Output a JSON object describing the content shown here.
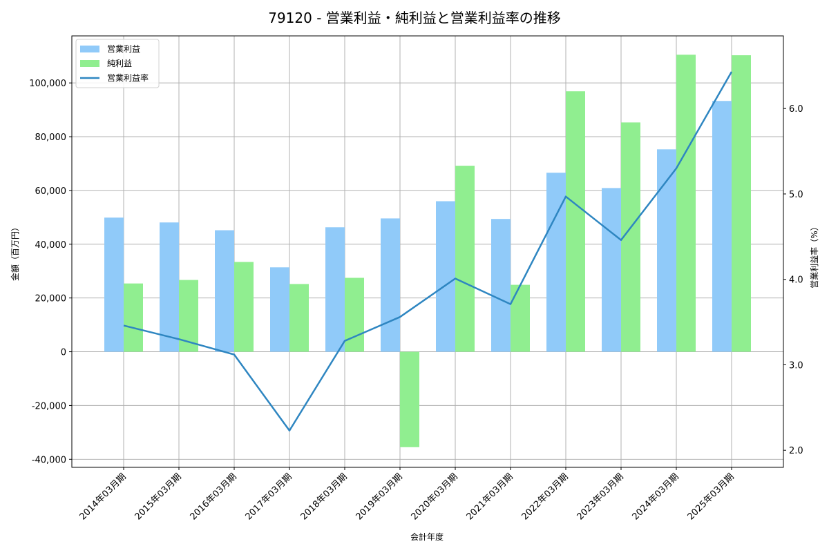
{
  "chart_data": {
    "type": "bar",
    "title": "79120 - 営業利益・純利益と営業利益率の推移",
    "xlabel": "会計年度",
    "ylabel": "金額（百万円）",
    "y2label": "営業利益率（%）",
    "categories": [
      "2014年03月期",
      "2015年03月期",
      "2016年03月期",
      "2017年03月期",
      "2018年03月期",
      "2019年03月期",
      "2020年03月期",
      "2021年03月期",
      "2022年03月期",
      "2023年03月期",
      "2024年03月期",
      "2025年03月期"
    ],
    "series": [
      {
        "name": "営業利益",
        "type": "bar",
        "axis": "left",
        "color": "#90CAF9",
        "values": [
          49900,
          48100,
          45200,
          31400,
          46300,
          49600,
          56000,
          49400,
          66600,
          60900,
          75300,
          93300
        ]
      },
      {
        "name": "純利益",
        "type": "bar",
        "axis": "left",
        "color": "#90EE90",
        "values": [
          25400,
          26700,
          33400,
          25200,
          27500,
          -35500,
          69200,
          24900,
          96900,
          85300,
          110500,
          110300
        ]
      },
      {
        "name": "営業利益率",
        "type": "line",
        "axis": "right",
        "color": "#2E86C1",
        "values": [
          3.46,
          3.3,
          3.12,
          2.23,
          3.28,
          3.56,
          4.01,
          3.71,
          4.97,
          4.46,
          5.3,
          6.43
        ]
      }
    ],
    "ylim": [
      -43000,
      117500
    ],
    "y2lim": [
      1.8,
      6.85
    ],
    "yticks": [
      -40000,
      -20000,
      0,
      20000,
      40000,
      60000,
      80000,
      100000
    ],
    "ytick_labels": [
      "-40,000",
      "-20,000",
      "0",
      "20,000",
      "40,000",
      "60,000",
      "80,000",
      "100,000"
    ],
    "y2ticks": [
      2.0,
      3.0,
      4.0,
      5.0,
      6.0
    ],
    "y2tick_labels": [
      "2.0",
      "3.0",
      "4.0",
      "5.0",
      "6.0"
    ],
    "grid": true,
    "legend_position": "upper left"
  }
}
